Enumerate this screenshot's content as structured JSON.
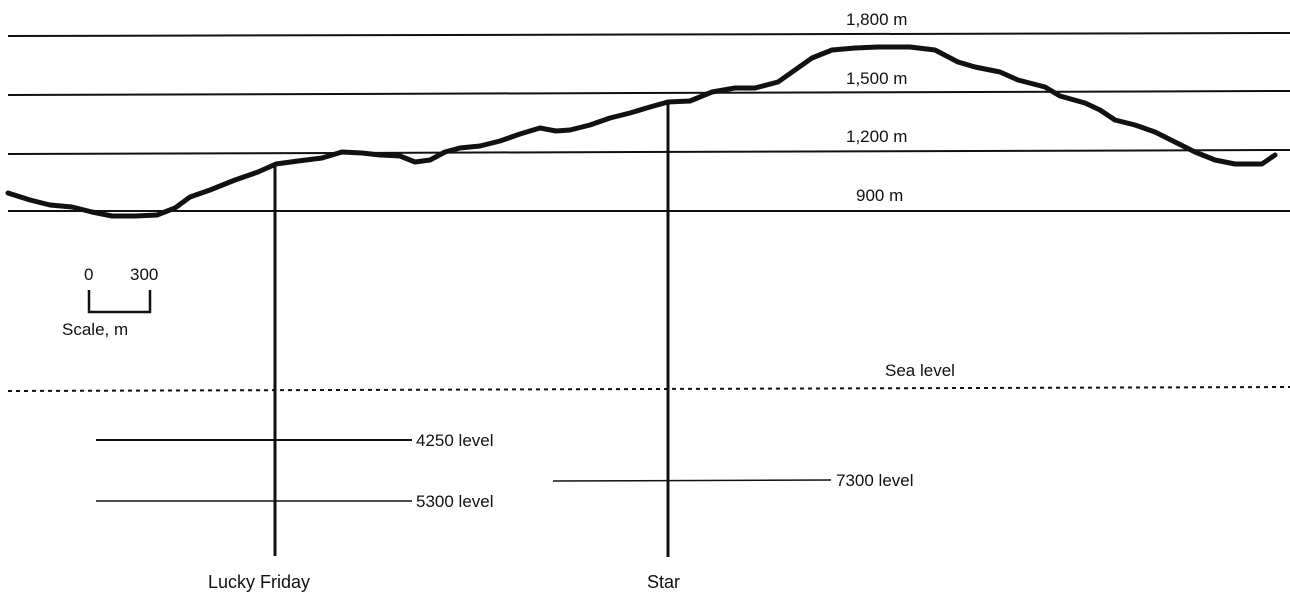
{
  "colors": {
    "line": "#111111",
    "background": "#ffffff"
  },
  "elevations": [
    {
      "label": "1,800 m",
      "meters": 1800
    },
    {
      "label": "1,500 m",
      "meters": 1500
    },
    {
      "label": "1,200 m",
      "meters": 1200
    },
    {
      "label": "900 m",
      "meters": 900
    }
  ],
  "sea_level": {
    "label": "Sea level"
  },
  "scale": {
    "start": "0",
    "end": "300",
    "caption": "Scale, m"
  },
  "shafts": [
    {
      "name": "Lucky Friday"
    },
    {
      "name": "Star"
    }
  ],
  "levels": [
    {
      "label": "4250 level",
      "shaft": "Lucky Friday"
    },
    {
      "label": "5300 level",
      "shaft": "Lucky Friday"
    },
    {
      "label": "7300 level",
      "shaft": "Star"
    }
  ]
}
